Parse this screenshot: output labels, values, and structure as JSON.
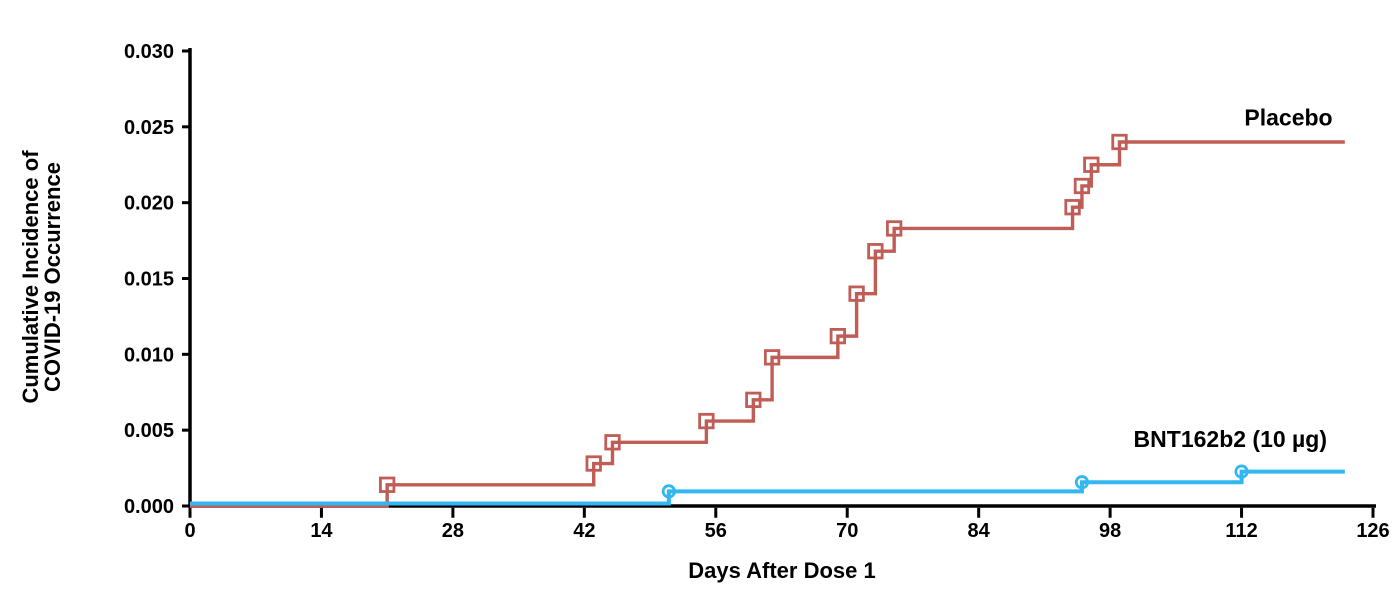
{
  "chart_data": {
    "type": "line",
    "subtype": "kaplan-meier-step-cumulative-incidence",
    "xlabel": "Days After Dose 1",
    "ylabel_lines": [
      "Cumulative Incidence of",
      "COVID-19 Occurrence"
    ],
    "x_ticks": [
      0,
      14,
      28,
      42,
      56,
      70,
      84,
      98,
      112,
      126
    ],
    "y_tick_labels": [
      "0.000",
      "0.005",
      "0.010",
      "0.015",
      "0.020",
      "0.025",
      "0.030"
    ],
    "xlim": [
      0,
      126
    ],
    "ylim": [
      0,
      0.03
    ],
    "grid": false,
    "legend_position": "inline-labels-right",
    "background_color": "#ffffff",
    "axis_color": "#000000",
    "series": [
      {
        "id": "placebo",
        "name": "Placebo",
        "label": "Placebo",
        "color": "#BF5D56",
        "marker": "open-square",
        "start_day": 0,
        "end_day": 123,
        "events": [
          [
            21,
            0.0014
          ],
          [
            43,
            0.0028
          ],
          [
            45,
            0.0042
          ],
          [
            55,
            0.0056
          ],
          [
            60,
            0.007
          ],
          [
            62,
            0.0098
          ],
          [
            69,
            0.0112
          ],
          [
            71,
            0.014
          ],
          [
            73,
            0.0168
          ],
          [
            75,
            0.0183
          ],
          [
            94,
            0.0197
          ],
          [
            95,
            0.0211
          ],
          [
            96,
            0.0225
          ],
          [
            99,
            0.024
          ]
        ],
        "label_at": [
          117,
          0.0251
        ]
      },
      {
        "id": "bnt162b2",
        "name": "BNT162b2 (10 µg)",
        "label": "BNT162b2 (10 µg)",
        "color": "#33B7F0",
        "marker": "open-circle",
        "start_day": 0,
        "end_day": 123,
        "events": [
          [
            51,
            0.0008
          ],
          [
            95,
            0.0014
          ],
          [
            112,
            0.0021
          ]
        ],
        "label_at": [
          110.8,
          0.0039
        ]
      }
    ]
  }
}
